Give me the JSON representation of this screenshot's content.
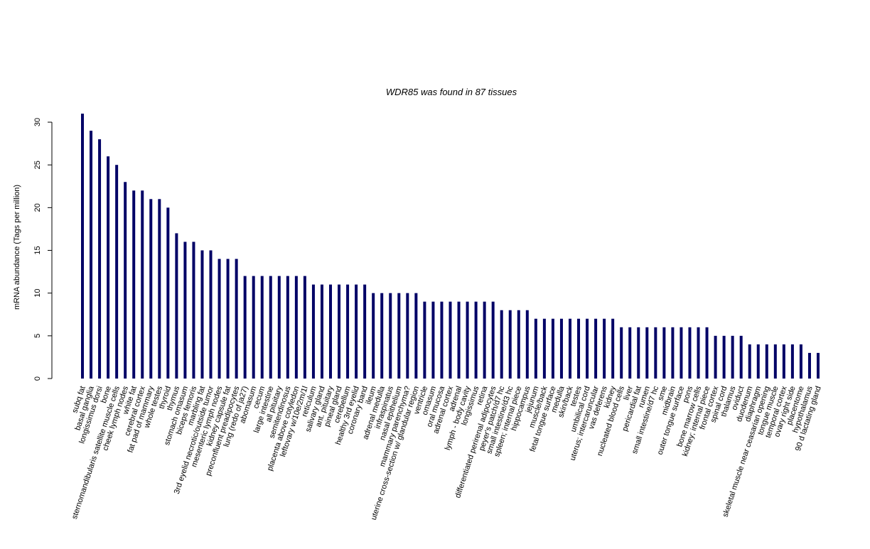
{
  "chart_data": {
    "type": "bar",
    "title": "WDR85  was found in  87  tissues",
    "y_label": "mRNA abundance (Tags per million)",
    "color": "#000066",
    "ylim": [
      0,
      31
    ],
    "yticks": [
      0,
      5,
      10,
      15,
      20,
      25,
      30
    ],
    "categories": [
      "subq fat",
      "basal ganglia",
      "longissimus dorsi",
      "bone",
      "sternomandibularis satellite muscle cells",
      "cheek lymph nodes",
      "white fat",
      "cerebral cortex",
      "fat pad of mammary",
      "whole testes",
      "thyroid",
      "thymus",
      "stomach omasum",
      "biceps femoris",
      "marbling fat",
      "3rd eyelid necrotic/outside tumor",
      "mesenteric lymph nodes",
      "kidney capsule fat",
      "preconfluent preadipocytes",
      "lung (redo of ja27)",
      "abomasum",
      "cecum",
      "large intestine",
      "all pituitary",
      "semitendinosus",
      "placenta above cotyledon",
      "leftovary w/10e/2m/1l",
      "reticulum",
      "salivary gland",
      "ant. pituitary",
      "pineal gland",
      "cerebellum",
      "healthy 3rd eyelid",
      "coronary band",
      "ileum",
      "adrenal medulla",
      "infraspinatus",
      "nasal epithelium",
      "mammary parenchyma?",
      "uterine cross-section w/ glandular region",
      "ventricle",
      "omasum",
      "oral mucosa",
      "adrenal cortex",
      "adrenal",
      "lymph - body cavity",
      "longissimus",
      "retina",
      "differentiated perirenal adipocytes",
      "peyer's patch/d7 hc",
      "small intestine/d3 hc",
      "spleen; internal piece",
      "hippocampus",
      "jejunum",
      "muscle/back",
      "fetal tongue surface",
      "medulla",
      "skin/back",
      "testes",
      "umbilical cord",
      "uterus; intercaruncular",
      "vas deferens",
      "kidney",
      "nucleated blood cells",
      "liver",
      "pericardial fat",
      "rumen",
      "small intestine/d7 hc",
      "sme",
      "midbrain",
      "outer tongue surface",
      "pons",
      "bone marrow cells",
      "kidney; internal piece",
      "frontal cortex",
      "spinal cord",
      "thalamus",
      "oviduct",
      "duodenum",
      "diaphragm",
      "skeletal muscle near ceasarian opening",
      "tongue muscle",
      "temporal cortex",
      "ovary right side",
      "placentome",
      "hypothalamus",
      "90 d lactating gland"
    ],
    "values": [
      31,
      29,
      28,
      26,
      25,
      23,
      22,
      22,
      21,
      21,
      20,
      17,
      16,
      16,
      15,
      15,
      14,
      14,
      14,
      12,
      12,
      12,
      12,
      12,
      12,
      12,
      12,
      11,
      11,
      11,
      11,
      11,
      11,
      11,
      10,
      10,
      10,
      10,
      10,
      10,
      9,
      9,
      9,
      9,
      9,
      9,
      9,
      9,
      9,
      8,
      8,
      8,
      8,
      7,
      7,
      7,
      7,
      7,
      7,
      7,
      7,
      7,
      7,
      6,
      6,
      6,
      6,
      6,
      6,
      6,
      6,
      6,
      6,
      6,
      5,
      5,
      5,
      5,
      4,
      4,
      4,
      4,
      4,
      4,
      4,
      3,
      3
    ]
  }
}
